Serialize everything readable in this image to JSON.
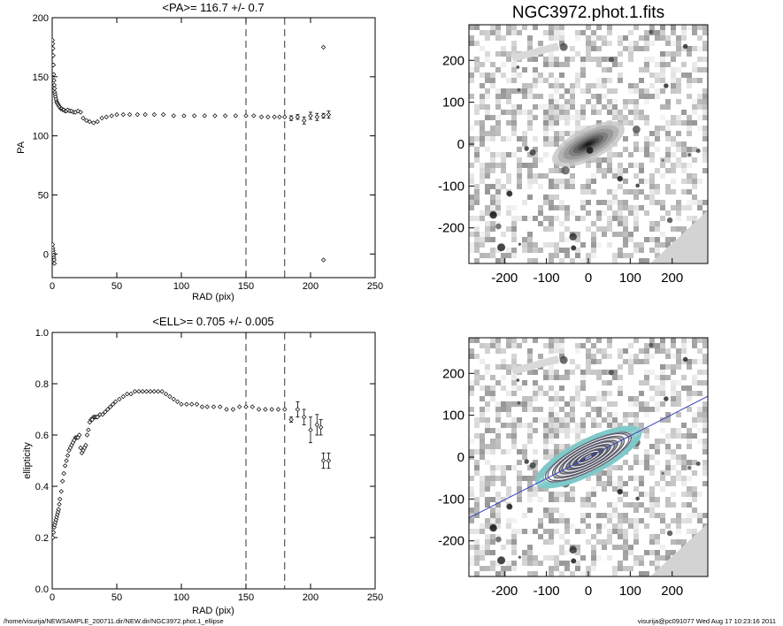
{
  "footer": {
    "path": "/home/visurija/NEWSAMPLE_200711.dir/NEW.dir/NGC3972.phot.1_ellipse",
    "user_date": "visurija@pc091077  Wed Aug 17 10:23:16 2011"
  },
  "chart_data": [
    {
      "type": "scatter",
      "title": "<PA>= 116.7 +/-   0.7",
      "xlabel": "RAD (pix)",
      "ylabel": "PA",
      "xlim": [
        0,
        250
      ],
      "ylim": [
        -20,
        200
      ],
      "xticks": [
        0,
        50,
        100,
        150,
        200,
        250
      ],
      "yticks": [
        0,
        50,
        100,
        150,
        200
      ],
      "vlines": [
        150,
        180
      ],
      "marker": "diamond",
      "series": [
        {
          "x": [
            0.2,
            0.4,
            0.6,
            0.8,
            1,
            1.2,
            1.4,
            1.6,
            1.8,
            2,
            2.3,
            2.6,
            3,
            3.4,
            3.8,
            4.3,
            4.8,
            5.4,
            6,
            6.7,
            7.4,
            8.2,
            9,
            10,
            11,
            12,
            13.5,
            15,
            16.5,
            18,
            20,
            22,
            24,
            26.5,
            29,
            32,
            35,
            38.5,
            42,
            46,
            50,
            55,
            60,
            66,
            72,
            79,
            86,
            94,
            102,
            110,
            118,
            126,
            134,
            142,
            150,
            156,
            162,
            167,
            172,
            176,
            180
          ],
          "y": [
            181,
            178,
            174,
            168,
            160,
            152,
            147,
            143,
            140,
            137,
            135,
            133,
            131,
            129,
            128,
            127,
            126,
            125,
            124,
            123,
            123,
            122,
            122,
            121,
            121,
            122,
            121,
            121,
            120,
            120,
            121,
            120,
            115,
            113,
            112,
            111,
            112,
            115,
            116,
            117,
            118,
            118,
            118,
            118,
            118,
            118,
            118,
            117,
            117,
            117,
            117,
            117,
            117,
            117,
            117,
            117,
            116,
            116,
            116,
            116,
            116
          ]
        },
        {
          "x": [
            0.3,
            0.5,
            0.7,
            0.9,
            1.1,
            1.3,
            1.5,
            1.7
          ],
          "y": [
            8,
            5,
            3,
            1,
            -1,
            -3,
            -5,
            -8
          ]
        },
        {
          "x": [
            185,
            190,
            195,
            200,
            205,
            210,
            214
          ],
          "y": [
            115,
            116,
            113,
            117,
            116,
            117,
            118
          ],
          "err": [
            2,
            2,
            3,
            3,
            3,
            2,
            3
          ]
        },
        {
          "x": [
            210,
            210
          ],
          "y": [
            175,
            -5
          ]
        }
      ]
    },
    {
      "type": "image",
      "title": "NGC3972.phot.1.fits",
      "xlim": [
        -285,
        285
      ],
      "ylim": [
        -285,
        285
      ],
      "xticks": [
        -200,
        -100,
        0,
        100,
        200
      ],
      "yticks": [
        -200,
        -100,
        0,
        100,
        200
      ]
    },
    {
      "type": "scatter",
      "title": "<ELL>= 0.705 +/-  0.005",
      "xlabel": "RAD (pix)",
      "ylabel": "ellipticity",
      "xlim": [
        0,
        250
      ],
      "ylim": [
        0,
        1
      ],
      "xticks": [
        0,
        50,
        100,
        150,
        200,
        250
      ],
      "yticks": [
        0.0,
        0.2,
        0.4,
        0.6,
        0.8,
        1.0
      ],
      "vlines": [
        150,
        180
      ],
      "marker": "diamond",
      "series": [
        {
          "x": [
            0.5,
            1,
            1.5,
            2,
            2.5,
            3,
            3.5,
            4,
            4.5,
            5,
            5.5,
            6,
            7,
            8,
            9,
            10,
            11,
            12,
            13,
            14,
            15,
            16,
            17,
            18,
            19,
            20,
            21,
            22,
            23,
            24,
            25,
            26,
            27,
            28,
            29,
            30,
            31,
            32,
            33,
            34,
            35,
            37,
            39,
            41,
            43,
            45,
            47,
            49,
            52,
            55,
            58,
            61,
            64,
            67,
            70,
            73,
            76,
            79,
            82,
            85,
            88,
            91,
            94,
            97,
            100,
            104,
            108,
            112,
            116,
            120,
            125,
            130,
            135,
            140,
            145,
            150,
            155,
            160,
            165,
            170,
            175,
            180
          ],
          "y": [
            0.2,
            0.22,
            0.24,
            0.25,
            0.26,
            0.27,
            0.28,
            0.29,
            0.3,
            0.31,
            0.33,
            0.35,
            0.38,
            0.42,
            0.45,
            0.48,
            0.5,
            0.52,
            0.54,
            0.55,
            0.56,
            0.57,
            0.58,
            0.59,
            0.59,
            0.59,
            0.6,
            0.55,
            0.53,
            0.54,
            0.55,
            0.56,
            0.6,
            0.62,
            0.65,
            0.66,
            0.66,
            0.67,
            0.67,
            0.67,
            0.67,
            0.68,
            0.68,
            0.69,
            0.7,
            0.71,
            0.72,
            0.73,
            0.74,
            0.75,
            0.76,
            0.76,
            0.77,
            0.77,
            0.77,
            0.77,
            0.77,
            0.77,
            0.77,
            0.77,
            0.76,
            0.75,
            0.74,
            0.73,
            0.72,
            0.72,
            0.72,
            0.72,
            0.71,
            0.71,
            0.71,
            0.71,
            0.7,
            0.7,
            0.71,
            0.71,
            0.71,
            0.7,
            0.7,
            0.7,
            0.7,
            0.7
          ]
        },
        {
          "x": [
            185,
            190,
            195,
            200,
            205,
            208,
            210,
            214
          ],
          "y": [
            0.66,
            0.7,
            0.67,
            0.62,
            0.64,
            0.63,
            0.5,
            0.5
          ],
          "err": [
            0.01,
            0.03,
            0.03,
            0.05,
            0.04,
            0.03,
            0.03,
            0.03
          ]
        }
      ]
    },
    {
      "type": "image",
      "title": "",
      "xlim": [
        -285,
        285
      ],
      "ylim": [
        -285,
        285
      ],
      "xticks": [
        -200,
        -100,
        0,
        100,
        200
      ],
      "yticks": [
        -200,
        -100,
        0,
        100,
        200
      ],
      "overlay": "isophote ellipses with major-axis line",
      "pa_deg": 116.7,
      "ellipticity": 0.705,
      "contour_colors": [
        "#ffffff",
        "#555566",
        "#7fc9c9"
      ],
      "axis_line_color": "#3344bb"
    }
  ]
}
